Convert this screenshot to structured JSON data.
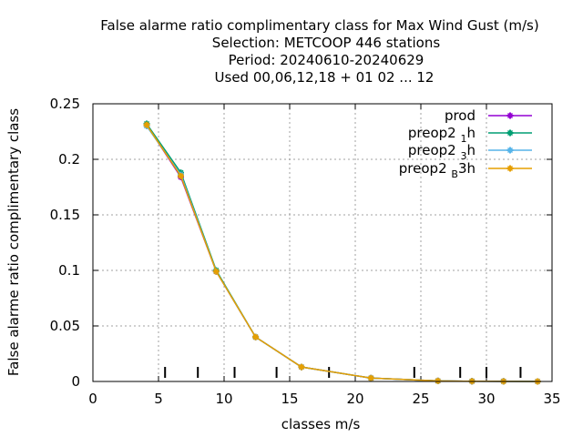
{
  "title_lines": [
    "False alarme ratio complimentary class  for Max Wind Gust (m/s)",
    "Selection: METCOOP    446 stations",
    "Period: 20240610-20240629",
    "Used  00,06,12,18 + 01 02 ... 12"
  ],
  "chart_data": {
    "type": "line",
    "xlabel": "classes m/s",
    "ylabel": "False alarme ratio complimentary class",
    "xlim": [
      0,
      35
    ],
    "ylim": [
      0,
      0.25
    ],
    "xticks": [
      0,
      5,
      10,
      15,
      20,
      25,
      30,
      35
    ],
    "xtick_labels": [
      "0",
      "5",
      "10",
      "15",
      "20",
      "25",
      "30",
      "35"
    ],
    "yticks": [
      0,
      0.05,
      0.1,
      0.15,
      0.2,
      0.25
    ],
    "ytick_labels": [
      "0",
      "0.05",
      "0.1",
      "0.15",
      "0.2",
      "0.25"
    ],
    "grid": true,
    "legend_position": "top-right",
    "class_markers_x": [
      5.5,
      8,
      10.8,
      14,
      18,
      24.5,
      28,
      30,
      32.6
    ],
    "series": [
      {
        "name": "prod",
        "legend_main": "prod",
        "legend_sub": "",
        "legend_tail": "",
        "color": "#9400d3",
        "x": [
          4.1,
          6.7,
          9.4,
          12.4,
          15.9,
          21.2,
          26.3,
          28.9,
          31.3,
          33.9
        ],
        "y": [
          0.231,
          0.184,
          0.099,
          0.04,
          0.013,
          0.003,
          0.0005,
          0.0002,
          0.0001,
          0.0
        ]
      },
      {
        "name": "preop2 1 h",
        "legend_main": "preop2 ",
        "legend_sub": "1",
        "legend_tail": "h",
        "color": "#009e73",
        "x": [
          4.1,
          6.7,
          9.4,
          12.4,
          15.9,
          21.2,
          26.3,
          28.9,
          31.3,
          33.9
        ],
        "y": [
          0.232,
          0.188,
          0.1,
          0.04,
          0.013,
          0.003,
          0.0005,
          0.0002,
          0.0001,
          0.0
        ]
      },
      {
        "name": "preop2 3 h",
        "legend_main": "preop2 ",
        "legend_sub": "3",
        "legend_tail": "h",
        "color": "#56b4e9",
        "x": [
          4.1,
          6.7,
          9.4,
          12.4,
          15.9,
          21.2,
          26.3,
          28.9,
          31.3,
          33.9
        ],
        "y": [
          0.23,
          0.186,
          0.099,
          0.04,
          0.013,
          0.003,
          0.0005,
          0.0002,
          0.0001,
          0.0
        ]
      },
      {
        "name": "preop2 B 3h",
        "legend_main": "preop2 ",
        "legend_sub": "B",
        "legend_tail": "3h",
        "color": "#e69f00",
        "x": [
          4.1,
          6.7,
          9.4,
          12.4,
          15.9,
          21.2,
          26.3,
          28.9,
          31.3,
          33.9
        ],
        "y": [
          0.231,
          0.185,
          0.099,
          0.04,
          0.013,
          0.003,
          0.0005,
          0.0002,
          0.0001,
          0.0
        ]
      }
    ]
  }
}
